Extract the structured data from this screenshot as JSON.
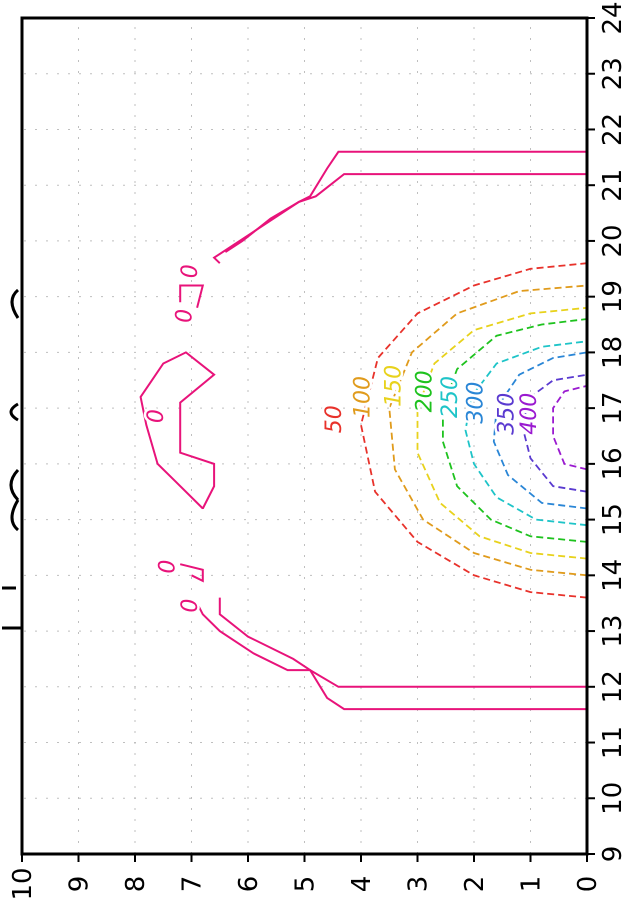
{
  "chart_data": {
    "type": "contour",
    "orientation": "rotated-90-clockwise",
    "x_axis": {
      "range": [
        9,
        24
      ],
      "ticks": [
        "9",
        "10",
        "11",
        "12",
        "13",
        "14",
        "15",
        "16",
        "17",
        "18",
        "19",
        "20",
        "21",
        "22",
        "23",
        "24"
      ]
    },
    "y_axis": {
      "range": [
        0,
        10
      ],
      "ticks": [
        "0",
        "1",
        "2",
        "3",
        "4",
        "5",
        "6",
        "7",
        "8",
        "9",
        "10"
      ]
    },
    "grid": true,
    "levels": [
      {
        "value": 50,
        "label": "50",
        "color": "#e8322b",
        "style": "dashed"
      },
      {
        "value": 100,
        "label": "100",
        "color": "#e09b1c",
        "style": "dashed"
      },
      {
        "value": 150,
        "label": "150",
        "color": "#e8d21c",
        "style": "dashed"
      },
      {
        "value": 200,
        "label": "200",
        "color": "#1ec21e",
        "style": "dashed"
      },
      {
        "value": 250,
        "label": "250",
        "color": "#1ec4c8",
        "style": "dashed"
      },
      {
        "value": 300,
        "label": "300",
        "color": "#2a86d6",
        "style": "dashed"
      },
      {
        "value": 350,
        "label": "350",
        "color": "#5a3ad0",
        "style": "dashed"
      },
      {
        "value": 400,
        "label": "400",
        "color": "#9a1ad0",
        "style": "dashed"
      }
    ],
    "zero_contour": {
      "label": "0",
      "color": "#e8137a",
      "style": "solid"
    },
    "contours": [
      {
        "level": 50,
        "points": [
          [
            13.6,
            0
          ],
          [
            13.7,
            1
          ],
          [
            14.0,
            2
          ],
          [
            14.6,
            3
          ],
          [
            15.5,
            3.75
          ],
          [
            16.7,
            4.0
          ],
          [
            17.9,
            3.7
          ],
          [
            18.7,
            3.0
          ],
          [
            19.2,
            2.0
          ],
          [
            19.5,
            1.0
          ],
          [
            19.6,
            0
          ]
        ]
      },
      {
        "level": 100,
        "points": [
          [
            14.0,
            0
          ],
          [
            14.1,
            1
          ],
          [
            14.4,
            2
          ],
          [
            15.0,
            2.9
          ],
          [
            15.9,
            3.4
          ],
          [
            17.0,
            3.5
          ],
          [
            18.0,
            3.1
          ],
          [
            18.7,
            2.3
          ],
          [
            19.1,
            1.2
          ],
          [
            19.2,
            0
          ]
        ]
      },
      {
        "level": 150,
        "points": [
          [
            14.3,
            0
          ],
          [
            14.4,
            1
          ],
          [
            14.7,
            1.9
          ],
          [
            15.3,
            2.6
          ],
          [
            16.2,
            3.0
          ],
          [
            17.0,
            3.0
          ],
          [
            17.8,
            2.7
          ],
          [
            18.4,
            2.0
          ],
          [
            18.7,
            1.0
          ],
          [
            18.8,
            0
          ]
        ]
      },
      {
        "level": 200,
        "points": [
          [
            14.6,
            0
          ],
          [
            14.7,
            1
          ],
          [
            15.0,
            1.7
          ],
          [
            15.6,
            2.3
          ],
          [
            16.4,
            2.55
          ],
          [
            17.0,
            2.55
          ],
          [
            17.7,
            2.3
          ],
          [
            18.3,
            1.6
          ],
          [
            18.5,
            0.8
          ],
          [
            18.6,
            0
          ]
        ]
      },
      {
        "level": 250,
        "points": [
          [
            14.9,
            0
          ],
          [
            15.0,
            0.9
          ],
          [
            15.4,
            1.6
          ],
          [
            16.0,
            2.0
          ],
          [
            16.6,
            2.15
          ],
          [
            17.2,
            2.05
          ],
          [
            17.8,
            1.6
          ],
          [
            18.1,
            0.8
          ],
          [
            18.2,
            0
          ]
        ]
      },
      {
        "level": 300,
        "points": [
          [
            15.2,
            0
          ],
          [
            15.3,
            0.8
          ],
          [
            15.8,
            1.4
          ],
          [
            16.4,
            1.65
          ],
          [
            17.0,
            1.6
          ],
          [
            17.6,
            1.2
          ],
          [
            17.9,
            0.6
          ],
          [
            18.0,
            0
          ]
        ]
      },
      {
        "level": 350,
        "points": [
          [
            15.5,
            0
          ],
          [
            15.6,
            0.6
          ],
          [
            16.1,
            1.0
          ],
          [
            16.7,
            1.15
          ],
          [
            17.2,
            1.0
          ],
          [
            17.5,
            0.6
          ],
          [
            17.6,
            0
          ]
        ]
      },
      {
        "level": 400,
        "points": [
          [
            15.9,
            0
          ],
          [
            16.0,
            0.4
          ],
          [
            16.5,
            0.6
          ],
          [
            17.0,
            0.6
          ],
          [
            17.3,
            0.4
          ],
          [
            17.4,
            0
          ]
        ]
      }
    ],
    "zero_lines": [
      {
        "points": [
          [
            11.6,
            0
          ],
          [
            11.6,
            4.3
          ],
          [
            11.8,
            4.6
          ],
          [
            12.3,
            4.9
          ],
          [
            12.5,
            5.2
          ],
          [
            12.9,
            6.0
          ],
          [
            13.3,
            6.5
          ],
          [
            13.6,
            6.5
          ]
        ]
      },
      {
        "points": [
          [
            12.0,
            0
          ],
          [
            12.0,
            4.4
          ],
          [
            12.3,
            4.9
          ],
          [
            12.3,
            5.3
          ],
          [
            12.6,
            5.9
          ],
          [
            13.0,
            6.5
          ],
          [
            13.3,
            6.8
          ],
          [
            13.5,
            6.9
          ]
        ]
      },
      {
        "points": [
          [
            21.6,
            0
          ],
          [
            21.6,
            4.4
          ],
          [
            21.3,
            4.6
          ],
          [
            20.8,
            4.9
          ],
          [
            20.7,
            5.1
          ],
          [
            20.1,
            6.0
          ],
          [
            19.7,
            6.6
          ],
          [
            19.6,
            6.5
          ]
        ]
      },
      {
        "points": [
          [
            21.2,
            0
          ],
          [
            21.2,
            4.3
          ],
          [
            20.8,
            4.8
          ],
          [
            20.7,
            5.1
          ],
          [
            20.4,
            5.6
          ],
          [
            20.0,
            6.1
          ],
          [
            19.8,
            6.4
          ]
        ]
      },
      {
        "points": [
          [
            14.2,
            7.2
          ],
          [
            14.1,
            6.8
          ],
          [
            13.9,
            6.8
          ],
          [
            14.0,
            7.0
          ]
        ]
      },
      {
        "points": [
          [
            18.8,
            6.9
          ],
          [
            19.2,
            6.8
          ],
          [
            19.2,
            7.2
          ],
          [
            18.9,
            7.2
          ]
        ]
      },
      {
        "points": [
          [
            15.2,
            6.8
          ],
          [
            15.7,
            7.3
          ],
          [
            16.0,
            7.6
          ],
          [
            16.7,
            7.8
          ],
          [
            17.2,
            7.9
          ],
          [
            17.8,
            7.5
          ],
          [
            18.0,
            7.1
          ],
          [
            17.6,
            6.6
          ],
          [
            17.1,
            7.2
          ],
          [
            16.2,
            7.2
          ],
          [
            16.0,
            6.6
          ],
          [
            15.6,
            6.6
          ],
          [
            15.2,
            6.8
          ]
        ]
      }
    ],
    "zero_labels": [
      {
        "x": 13.6,
        "y": 6.9,
        "text": "0"
      },
      {
        "x": 14.3,
        "y": 7.3,
        "text": "0"
      },
      {
        "x": 17.0,
        "y": 7.5,
        "text": "0"
      },
      {
        "x": 18.8,
        "y": 7.0,
        "text": "0"
      },
      {
        "x": 19.6,
        "y": 6.9,
        "text": "0"
      }
    ],
    "level_labels": [
      {
        "level": 50,
        "x": 16.8,
        "y": 4.35
      },
      {
        "level": 100,
        "x": 17.2,
        "y": 3.85
      },
      {
        "level": 150,
        "x": 17.4,
        "y": 3.3
      },
      {
        "level": 200,
        "x": 17.3,
        "y": 2.75
      },
      {
        "level": 250,
        "x": 17.2,
        "y": 2.3
      },
      {
        "level": 300,
        "x": 17.1,
        "y": 1.85
      },
      {
        "level": 350,
        "x": 16.9,
        "y": 1.3
      },
      {
        "level": 400,
        "x": 16.9,
        "y": 0.9
      }
    ]
  }
}
